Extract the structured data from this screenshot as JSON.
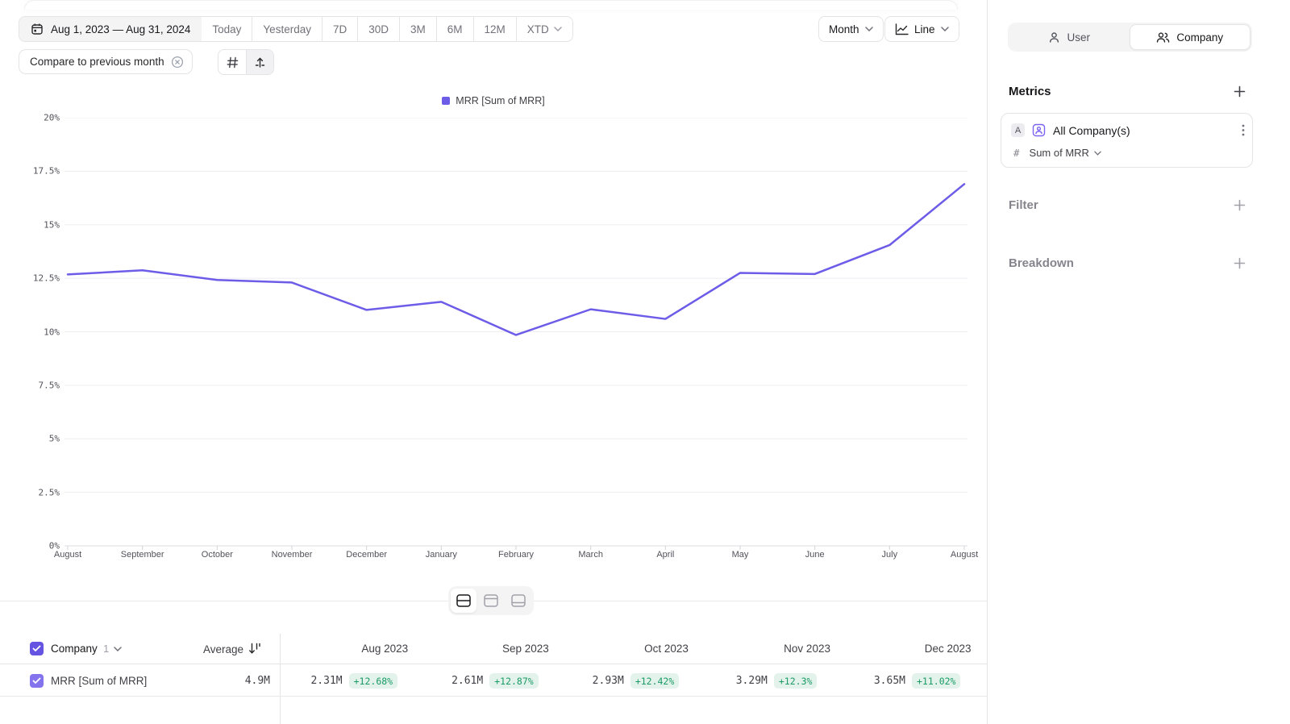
{
  "toolbar": {
    "date_range": "Aug 1, 2023 — Aug 31, 2024",
    "presets": [
      "Today",
      "Yesterday",
      "7D",
      "30D",
      "3M",
      "6M",
      "12M"
    ],
    "xtd": "XTD",
    "granularity": "Month",
    "chart_type": "Line",
    "compare_chip": "Compare to previous month"
  },
  "chart_data": {
    "type": "line",
    "title": "",
    "xlabel": "",
    "ylabel": "",
    "categories": [
      "August",
      "September",
      "October",
      "November",
      "December",
      "January",
      "February",
      "March",
      "April",
      "May",
      "June",
      "July",
      "August"
    ],
    "series": [
      {
        "name": "MRR [Sum of MRR]",
        "color": "#6d5ce8",
        "values": [
          12.68,
          12.87,
          12.42,
          12.3,
          11.02,
          11.4,
          9.85,
          11.05,
          10.6,
          12.75,
          12.7,
          14.05,
          16.9
        ]
      }
    ],
    "y_ticks": [
      20,
      17.5,
      15,
      12.5,
      10,
      7.5,
      5,
      2.5,
      0
    ],
    "y_tick_suffix": "%",
    "ylim": [
      0,
      20
    ],
    "grid": true,
    "legend_position": "top"
  },
  "view_switcher": [
    "split-view",
    "table-top-view",
    "table-bottom-view"
  ],
  "table": {
    "entity": "Company",
    "count": "1",
    "average_label": "Average",
    "columns": [
      "Aug 2023",
      "Sep 2023",
      "Oct 2023",
      "Nov 2023",
      "Dec 2023"
    ],
    "rows": [
      {
        "label": "MRR [Sum of MRR]",
        "average": "4.9M",
        "cells": [
          {
            "value": "2.31M",
            "delta": "+12.68%"
          },
          {
            "value": "2.61M",
            "delta": "+12.87%"
          },
          {
            "value": "2.93M",
            "delta": "+12.42%"
          },
          {
            "value": "3.29M",
            "delta": "+12.3%"
          },
          {
            "value": "3.65M",
            "delta": "+11.02%"
          }
        ]
      }
    ]
  },
  "sidebar": {
    "tabs": [
      {
        "label": "User",
        "active": false
      },
      {
        "label": "Company",
        "active": true
      }
    ],
    "metrics_title": "Metrics",
    "metric": {
      "letter": "A",
      "name": "All Company(s)",
      "aggregation": "Sum of MRR",
      "hash": "#"
    },
    "filter_label": "Filter",
    "breakdown_label": "Breakdown"
  },
  "colors": {
    "accent": "#6d5ce8",
    "checkbox_header": "#6553e2",
    "checkbox_row": "#8374ee",
    "delta_bg": "#e3f3eb",
    "delta_text": "#1a9a66",
    "border": "#e4e4e7",
    "grid_line": "#ededf0",
    "axis_text": "#52525b"
  }
}
